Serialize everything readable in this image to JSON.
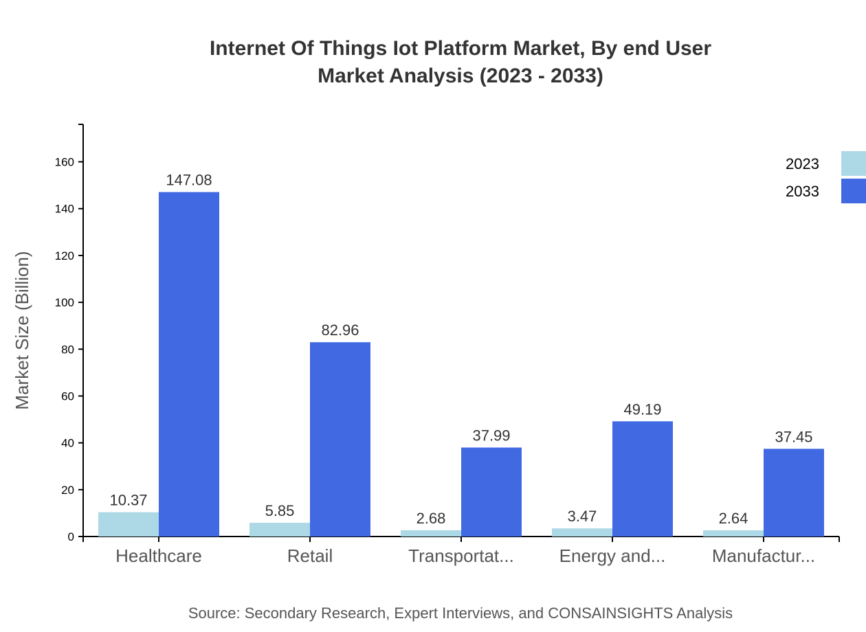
{
  "chart_data": {
    "type": "bar",
    "title_lines": [
      "Internet Of Things Iot Platform Market, By end User",
      "Market Analysis (2023 - 2033)"
    ],
    "ylabel": "Market Size (Billion)",
    "xlabel": "",
    "ylim": [
      0,
      176
    ],
    "yticks": [
      0,
      20,
      40,
      60,
      80,
      100,
      120,
      140,
      160
    ],
    "categories": [
      "Healthcare",
      "Retail",
      "Transportat...",
      "Energy and...",
      "Manufactur..."
    ],
    "series": [
      {
        "name": "2023",
        "color": "#add8e6",
        "values": [
          10.37,
          5.85,
          2.68,
          3.47,
          2.64
        ]
      },
      {
        "name": "2033",
        "color": "#4169e1",
        "values": [
          147.08,
          82.96,
          37.99,
          49.19,
          37.45
        ]
      }
    ],
    "legend_position": "top-right",
    "grid": false,
    "source": "Source: Secondary Research, Expert Interviews, and CONSAINSIGHTS Analysis"
  }
}
